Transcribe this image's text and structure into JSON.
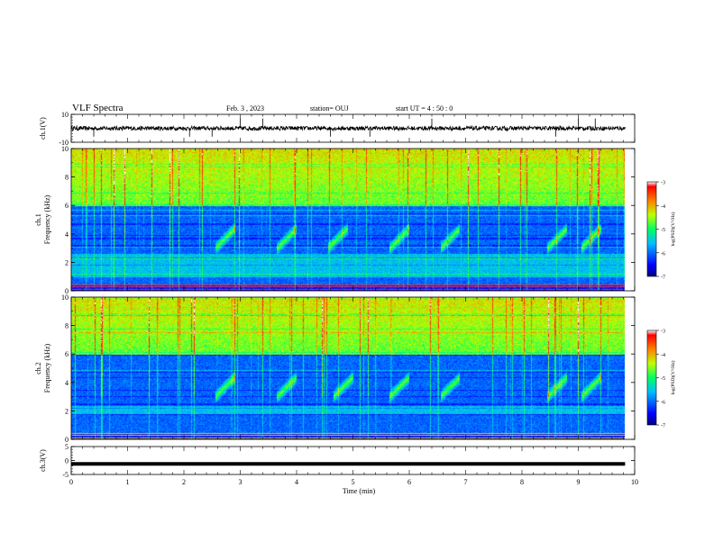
{
  "header": {
    "title": "VLF Spectra",
    "date": "Feb. 3 , 2023",
    "station": "station= OUJ",
    "start": "start UT = 4 : 50 : 0"
  },
  "chart_data": [
    {
      "type": "line",
      "panel": "ch1-waveform",
      "ylabel": "ch.1(V)",
      "ylim": [
        -10,
        10
      ],
      "yticks": [
        "10",
        "-10"
      ],
      "xlim": [
        0,
        10
      ],
      "description_values": {
        "baseline": 0.0,
        "noise_amplitude": 1.5
      },
      "spike_times_min": [
        0.4,
        2.1,
        2.5,
        3.0,
        3.4,
        4.6,
        5.3,
        6.4,
        8.6,
        9.0,
        9.3
      ]
    },
    {
      "type": "heatmap",
      "panel": "ch1-spectrogram",
      "ylabel": "ch.1\nFrequency (kHz)",
      "ylabel_line1": "ch.1",
      "ylabel_line2": "Frequency (kHz)",
      "ylim": [
        0,
        10
      ],
      "yticks": [
        "0",
        "2",
        "4",
        "6",
        "8",
        "10"
      ],
      "xlim": [
        0,
        9.83
      ],
      "colorbar": {
        "label": "log(PSD)(V²/Hz)",
        "min": -7,
        "max": -3,
        "ticks": [
          "-3",
          "-4",
          "-5",
          "-6",
          "-7"
        ]
      },
      "features": {
        "chorus_bursts_min": [
          2.6,
          3.7,
          4.6,
          5.7,
          6.6,
          8.5,
          9.1
        ],
        "chorus_band_khz": [
          3,
          5
        ],
        "strong_band_khz": [
          6,
          10
        ],
        "hiss_band_khz": [
          1,
          2.6
        ]
      }
    },
    {
      "type": "heatmap",
      "panel": "ch2-spectrogram",
      "ylabel_line1": "ch.2",
      "ylabel_line2": "Frequency (kHz)",
      "ylim": [
        0,
        10
      ],
      "yticks": [
        "0",
        "2",
        "4",
        "6",
        "8",
        "10"
      ],
      "xlim": [
        0,
        9.83
      ],
      "colorbar": {
        "label": "log(PSD)(V²/Hz)",
        "min": -7,
        "max": -3,
        "ticks": [
          "-3",
          "-4",
          "-5",
          "-6",
          "-7"
        ]
      },
      "features": {
        "chorus_bursts_min": [
          2.6,
          3.7,
          4.7,
          5.7,
          6.6,
          8.5,
          9.1
        ],
        "chorus_band_khz": [
          3,
          5
        ],
        "strong_band_khz": [
          6,
          10
        ],
        "hiss_band_khz": [
          1.8,
          2.4
        ]
      }
    },
    {
      "type": "line",
      "panel": "ch3-waveform",
      "ylabel": "ch.3(V)",
      "ylim": [
        -5,
        5
      ],
      "yticks": [
        "5",
        "0",
        "-5"
      ],
      "xlim": [
        0,
        10
      ],
      "description_values": {
        "baseline": -1.2
      }
    }
  ],
  "xaxis": {
    "label": "Time (min)",
    "ticks": [
      "0",
      "1",
      "2",
      "3",
      "4",
      "5",
      "6",
      "7",
      "8",
      "9",
      "10"
    ]
  }
}
